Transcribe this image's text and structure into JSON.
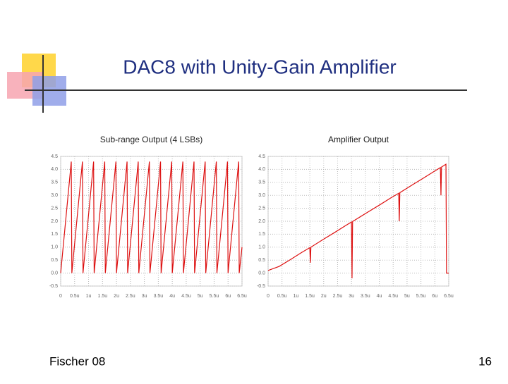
{
  "title": "DAC8 with Unity-Gain Amplifier",
  "footer": "Fischer 08",
  "page_number": "16",
  "chart_data": [
    {
      "type": "line",
      "title": "Sub-range Output (4 LSBs)",
      "grid": true,
      "xlim": [
        0,
        6.5
      ],
      "ylim": [
        -0.5,
        4.5
      ],
      "xticks": [
        0,
        {
          "value": 0.5,
          "label": "0.5u"
        },
        {
          "value": 1,
          "label": "1u"
        },
        {
          "value": 1.5,
          "label": "1.5u"
        },
        {
          "value": 2,
          "label": "2u"
        },
        {
          "value": 2.5,
          "label": "2.5u"
        },
        {
          "value": 3,
          "label": "3u"
        },
        {
          "value": 3.5,
          "label": "3.5u"
        },
        {
          "value": 4,
          "label": "4u"
        },
        {
          "value": 4.5,
          "label": "4.5u"
        },
        {
          "value": 5,
          "label": "5u"
        },
        {
          "value": 5.5,
          "label": "5.5u"
        },
        {
          "value": 6,
          "label": "6u"
        },
        {
          "value": 6.5,
          "label": "6.5u"
        }
      ],
      "yticks": [
        {
          "value": 4.5,
          "label": "4.5"
        },
        {
          "value": 4,
          "label": "4.0"
        },
        {
          "value": 3.5,
          "label": "3.5"
        },
        {
          "value": 3,
          "label": "3.0"
        },
        {
          "value": 2.5,
          "label": "2.5"
        },
        {
          "value": 2,
          "label": "2.0"
        },
        {
          "value": 1.5,
          "label": "1.5"
        },
        {
          "value": 1,
          "label": "1.0"
        },
        {
          "value": 0.5,
          "label": "0.5"
        },
        {
          "value": 0,
          "label": "0.0"
        },
        -0.5
      ],
      "series": [
        {
          "color": "#dd1111",
          "x": [
            0,
            0.38,
            0.4,
            0.78,
            0.8,
            1.18,
            1.2,
            1.58,
            1.6,
            1.98,
            2.0,
            2.38,
            2.4,
            2.78,
            2.8,
            3.18,
            3.2,
            3.58,
            3.6,
            3.98,
            4.0,
            4.38,
            4.4,
            4.78,
            4.8,
            5.18,
            5.2,
            5.58,
            5.6,
            5.98,
            6.0,
            6.38,
            6.4,
            6.5
          ],
          "values": [
            0,
            4.3,
            0,
            4.3,
            0,
            4.3,
            0,
            4.3,
            0,
            4.3,
            0,
            4.3,
            0,
            4.3,
            0,
            4.3,
            0,
            4.3,
            0,
            4.3,
            0,
            4.3,
            0,
            4.3,
            0,
            4.3,
            0,
            4.3,
            0,
            4.3,
            0,
            4.3,
            0,
            1.0
          ]
        }
      ]
    },
    {
      "type": "line",
      "title": "Amplifier Output",
      "grid": true,
      "xlim": [
        0,
        6.5
      ],
      "ylim": [
        -0.5,
        4.5
      ],
      "xticks": [
        0,
        {
          "value": 0.5,
          "label": "0.5u"
        },
        {
          "value": 1,
          "label": "1u"
        },
        {
          "value": 1.5,
          "label": "1.5u"
        },
        {
          "value": 2,
          "label": "2u"
        },
        {
          "value": 2.5,
          "label": "2.5u"
        },
        {
          "value": 3,
          "label": "3u"
        },
        {
          "value": 3.5,
          "label": "3.5u"
        },
        {
          "value": 4,
          "label": "4u"
        },
        {
          "value": 4.5,
          "label": "4.5u"
        },
        {
          "value": 5,
          "label": "5u"
        },
        {
          "value": 5.5,
          "label": "5.5u"
        },
        {
          "value": 6,
          "label": "6u"
        },
        {
          "value": 6.5,
          "label": "6.5u"
        }
      ],
      "yticks": [
        {
          "value": 4.5,
          "label": "4.5"
        },
        {
          "value": 4,
          "label": "4.0"
        },
        {
          "value": 3.5,
          "label": "3.5"
        },
        {
          "value": 3,
          "label": "3.0"
        },
        {
          "value": 2.5,
          "label": "2.5"
        },
        {
          "value": 2,
          "label": "2.0"
        },
        {
          "value": 1.5,
          "label": "1.5"
        },
        {
          "value": 1,
          "label": "1.0"
        },
        {
          "value": 0.5,
          "label": "0.5"
        },
        {
          "value": 0,
          "label": "0.0"
        },
        -0.5
      ],
      "series": [
        {
          "color": "#dd1111",
          "x": [
            0,
            0.4,
            0.8,
            1.2,
            1.5,
            1.52,
            1.54,
            2.0,
            2.4,
            2.8,
            3.0,
            3.02,
            3.04,
            3.6,
            4.0,
            4.4,
            4.7,
            4.72,
            4.74,
            5.2,
            5.6,
            6.0,
            6.2,
            6.22,
            6.24,
            6.4,
            6.42,
            6.5
          ],
          "values": [
            0.1,
            0.26,
            0.52,
            0.79,
            0.98,
            0.4,
            1.0,
            1.31,
            1.57,
            1.84,
            1.97,
            -0.2,
            1.99,
            2.36,
            2.62,
            2.89,
            3.08,
            2.0,
            3.1,
            3.41,
            3.67,
            3.94,
            4.07,
            3.0,
            4.09,
            4.2,
            0.0,
            0.0
          ]
        }
      ]
    }
  ]
}
